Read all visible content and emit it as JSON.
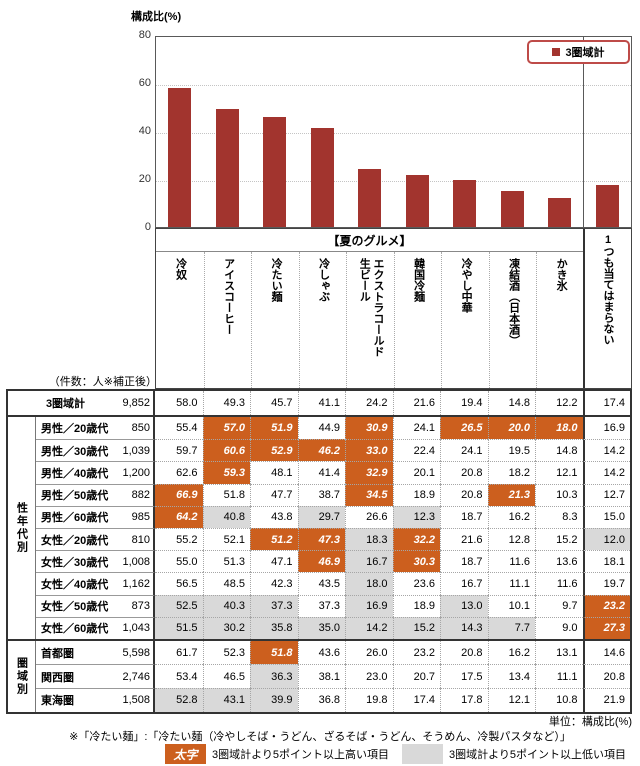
{
  "chart": {
    "y_axis_title": "構成比(%)",
    "y_ticks": [
      "80",
      "60",
      "40",
      "20",
      "0"
    ],
    "legend_label": "3圏域計",
    "colors": {
      "bar": "#A2342E",
      "legend_border": "#BE4B48",
      "highlight_high": "#CC5F1E",
      "highlight_low": "#D9D9D9"
    }
  },
  "chart_data": {
    "type": "bar",
    "title": "",
    "ylabel": "構成比(%)",
    "ylim": [
      0,
      80
    ],
    "grid": "dotted horizontal at 20/40/60",
    "legend_position": "top-right",
    "series_name": "3圏域計",
    "categories": [
      "冷奴",
      "アイスコーヒー",
      "冷たい麺",
      "冷しゃぶ",
      "エクストラコールド生ビール",
      "韓国冷麺",
      "冷やし中華",
      "凍結酒（日本酒）",
      "かき氷",
      "1つも当てはまらない"
    ],
    "values": [
      58.0,
      49.3,
      45.7,
      41.1,
      24.2,
      21.6,
      19.4,
      14.8,
      12.2,
      17.4
    ]
  },
  "table": {
    "group_header": "【夏のグルメ】",
    "counts_header": "（件数：人※補正後）",
    "last_column_label": "1つも当てはまらない",
    "item_columns": [
      {
        "label": "冷奴"
      },
      {
        "label": "アイスコーヒー"
      },
      {
        "label": "冷たい麺"
      },
      {
        "label": "冷しゃぶ"
      },
      {
        "label": "エクストラコールド生ビール",
        "display": "エクストラコールド\n生ビール"
      },
      {
        "label": "韓国冷麺"
      },
      {
        "label": "冷やし中華"
      },
      {
        "label": "凍結酒（日本酒）"
      },
      {
        "label": "かき氷"
      }
    ],
    "total_row": {
      "label": "3圏域計",
      "n": "9,852",
      "values": [
        "58.0",
        "49.3",
        "45.7",
        "41.1",
        "24.2",
        "21.6",
        "19.4",
        "14.8",
        "12.2",
        "17.4"
      ],
      "hl": [
        "",
        "",
        "",
        "",
        "",
        "",
        "",
        "",
        "",
        ""
      ]
    },
    "groups": [
      {
        "name": "性年代別",
        "rows": [
          {
            "label": "男性／20歳代",
            "n": "850",
            "values": [
              "55.4",
              "57.0",
              "51.9",
              "44.9",
              "30.9",
              "24.1",
              "26.5",
              "20.0",
              "18.0",
              "16.9"
            ],
            "hl": [
              "",
              "hi",
              "hi",
              "",
              "hi",
              "",
              "hi",
              "hi",
              "hi",
              ""
            ]
          },
          {
            "label": "男性／30歳代",
            "n": "1,039",
            "values": [
              "59.7",
              "60.6",
              "52.9",
              "46.2",
              "33.0",
              "22.4",
              "24.1",
              "19.5",
              "14.8",
              "14.2"
            ],
            "hl": [
              "",
              "hi",
              "hi",
              "hi",
              "hi",
              "",
              "",
              "",
              "",
              ""
            ]
          },
          {
            "label": "男性／40歳代",
            "n": "1,200",
            "values": [
              "62.6",
              "59.3",
              "48.1",
              "41.4",
              "32.9",
              "20.1",
              "20.8",
              "18.2",
              "12.1",
              "14.2"
            ],
            "hl": [
              "",
              "hi",
              "",
              "",
              "hi",
              "",
              "",
              "",
              "",
              ""
            ]
          },
          {
            "label": "男性／50歳代",
            "n": "882",
            "values": [
              "66.9",
              "51.8",
              "47.7",
              "38.7",
              "34.5",
              "18.9",
              "20.8",
              "21.3",
              "10.3",
              "12.7"
            ],
            "hl": [
              "hi",
              "",
              "",
              "",
              "hi",
              "",
              "",
              "hi",
              "",
              ""
            ]
          },
          {
            "label": "男性／60歳代",
            "n": "985",
            "values": [
              "64.2",
              "40.8",
              "43.8",
              "29.7",
              "26.6",
              "12.3",
              "18.7",
              "16.2",
              "8.3",
              "15.0"
            ],
            "hl": [
              "hi",
              "lo",
              "",
              "lo",
              "",
              "lo",
              "",
              "",
              "",
              ""
            ]
          },
          {
            "label": "女性／20歳代",
            "n": "810",
            "values": [
              "55.2",
              "52.1",
              "51.2",
              "47.3",
              "18.3",
              "32.2",
              "21.6",
              "12.8",
              "15.2",
              "12.0"
            ],
            "hl": [
              "",
              "",
              "hi",
              "hi",
              "lo",
              "hi",
              "",
              "",
              "",
              "lo"
            ]
          },
          {
            "label": "女性／30歳代",
            "n": "1,008",
            "values": [
              "55.0",
              "51.3",
              "47.1",
              "46.9",
              "16.7",
              "30.3",
              "18.7",
              "11.6",
              "13.6",
              "18.1"
            ],
            "hl": [
              "",
              "",
              "",
              "hi",
              "lo",
              "hi",
              "",
              "",
              "",
              ""
            ]
          },
          {
            "label": "女性／40歳代",
            "n": "1,162",
            "values": [
              "56.5",
              "48.5",
              "42.3",
              "43.5",
              "18.0",
              "23.6",
              "16.7",
              "11.1",
              "11.6",
              "19.7"
            ],
            "hl": [
              "",
              "",
              "",
              "",
              "lo",
              "",
              "",
              "",
              "",
              ""
            ]
          },
          {
            "label": "女性／50歳代",
            "n": "873",
            "values": [
              "52.5",
              "40.3",
              "37.3",
              "37.3",
              "16.9",
              "18.9",
              "13.0",
              "10.1",
              "9.7",
              "23.2"
            ],
            "hl": [
              "lo",
              "lo",
              "lo",
              "",
              "lo",
              "",
              "lo",
              "",
              "",
              "hi"
            ]
          },
          {
            "label": "女性／60歳代",
            "n": "1,043",
            "values": [
              "51.5",
              "30.2",
              "35.8",
              "35.0",
              "14.2",
              "15.2",
              "14.3",
              "7.7",
              "9.0",
              "27.3"
            ],
            "hl": [
              "lo",
              "lo",
              "lo",
              "lo",
              "lo",
              "lo",
              "lo",
              "lo",
              "",
              "hi"
            ]
          }
        ]
      },
      {
        "name": "圏域別",
        "rows": [
          {
            "label": "首都圏",
            "n": "5,598",
            "values": [
              "61.7",
              "52.3",
              "51.8",
              "43.6",
              "26.0",
              "23.2",
              "20.8",
              "16.2",
              "13.1",
              "14.6"
            ],
            "hl": [
              "",
              "",
              "hi",
              "",
              "",
              "",
              "",
              "",
              "",
              ""
            ]
          },
          {
            "label": "関西圏",
            "n": "2,746",
            "values": [
              "53.4",
              "46.5",
              "36.3",
              "38.1",
              "23.0",
              "20.7",
              "17.5",
              "13.4",
              "11.1",
              "20.8"
            ],
            "hl": [
              "",
              "",
              "lo",
              "",
              "",
              "",
              "",
              "",
              "",
              ""
            ]
          },
          {
            "label": "東海圏",
            "n": "1,508",
            "values": [
              "52.8",
              "43.1",
              "39.9",
              "36.8",
              "19.8",
              "17.4",
              "17.8",
              "12.1",
              "10.8",
              "21.9"
            ],
            "hl": [
              "lo",
              "lo",
              "lo",
              "",
              "",
              "",
              "",
              "",
              "",
              ""
            ]
          }
        ]
      }
    ]
  },
  "footer": {
    "unit": "単位：構成比(%)",
    "note": "※「冷たい麺」:「冷たい麺（冷やしそば・うどん、ざるそば・うどん、そうめん、冷製パスタなど）」",
    "hi_swatch_label": "太字",
    "hi_text": "3圏域計より5ポイント以上高い項目",
    "lo_text": "3圏域計より5ポイント以上低い項目"
  }
}
